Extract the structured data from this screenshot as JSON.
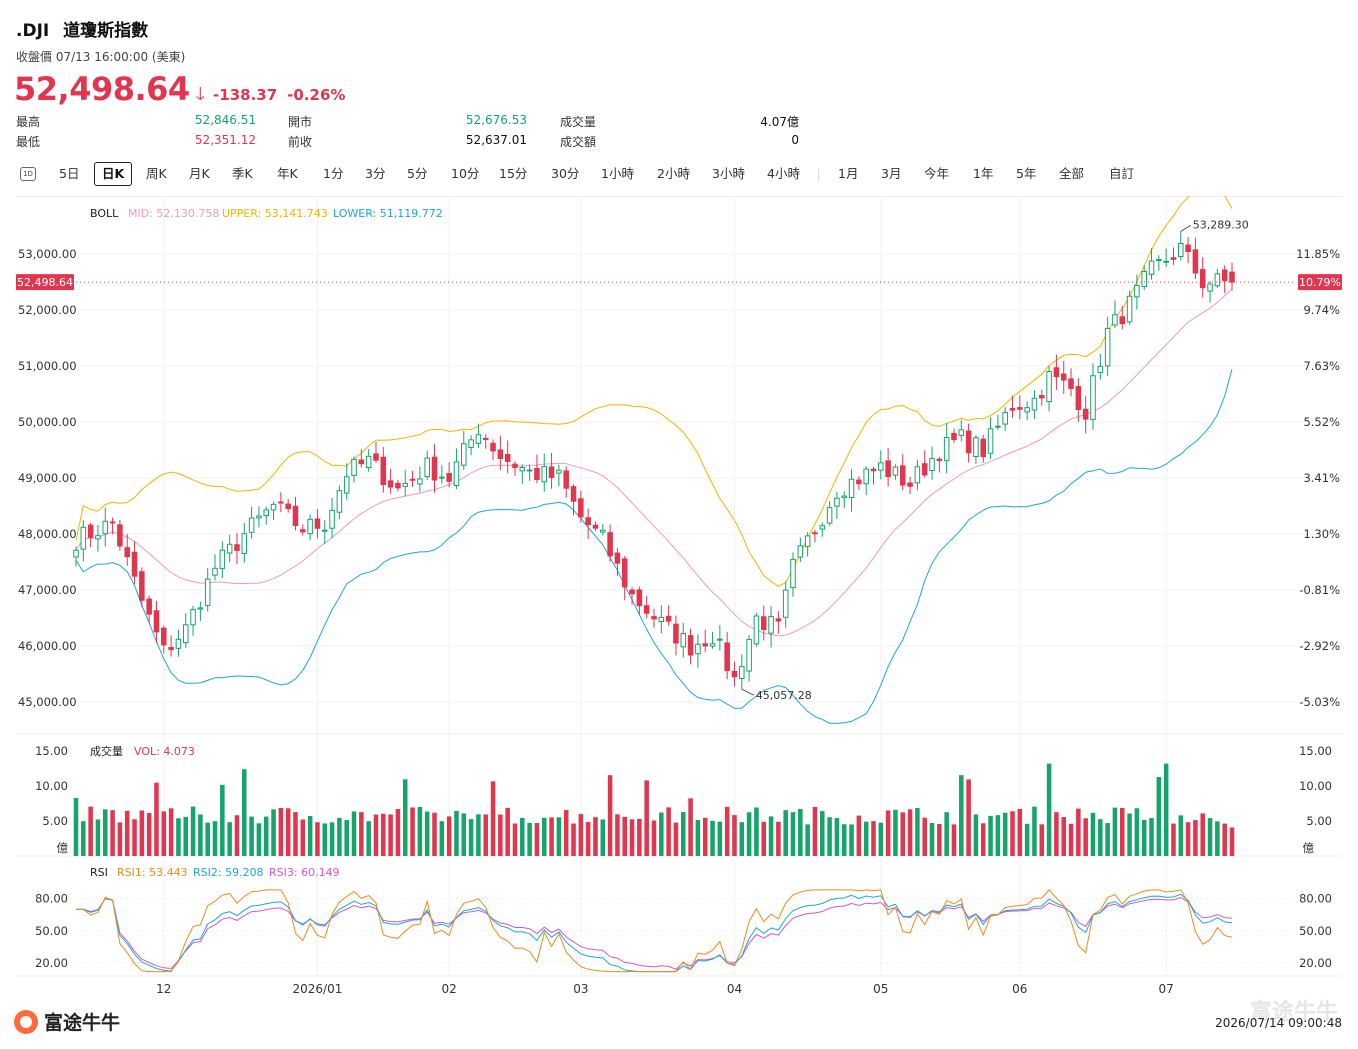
{
  "header": {
    "symbol": ".DJI",
    "name": "道瓊斯指數",
    "close_label": "收盤價 07/13 16:00:00 (美東)",
    "price": "52,498.64",
    "change": "-138.37",
    "change_pct": "-0.26%"
  },
  "stats": {
    "high_label": "最高",
    "high": "52,846.51",
    "low_label": "最低",
    "low": "52,351.12",
    "open_label": "開市",
    "open": "52,676.53",
    "prev_label": "前收",
    "prev": "52,637.01",
    "vol_label": "成交量",
    "vol": "4.07億",
    "amt_label": "成交額",
    "amt": "0"
  },
  "tabs": [
    "5日",
    "日K",
    "周K",
    "月K",
    "季K",
    "年K",
    "1分",
    "3分",
    "5分",
    "10分",
    "15分",
    "30分",
    "1小時",
    "2小時",
    "3小時",
    "4小時",
    "1月",
    "3月",
    "今年",
    "1年",
    "5年",
    "全部",
    "自訂"
  ],
  "tab_icon": "1D",
  "active_tab": "日K",
  "colors": {
    "up": "#15a56b",
    "down": "#e0364f",
    "mid": "#f29bb5",
    "upper": "#f0b400",
    "lower": "#1fa7d3",
    "rsi1": "#f08a1c",
    "rsi2": "#1fa7d3",
    "rsi3": "#d657cf"
  },
  "chart_data": {
    "type": "candlestick",
    "boll": {
      "label": "BOLL",
      "mid": "MID: 52,130.758",
      "upper": "UPPER: 53,141.743",
      "lower": "LOWER: 51,119.772"
    },
    "price_ticks": [
      "53,000.00",
      "52,000.00",
      "51,000.00",
      "50,000.00",
      "49,000.00",
      "48,000.00",
      "47,000.00",
      "46,000.00",
      "45,000.00"
    ],
    "price_tick_values": [
      53000,
      52000,
      51000,
      50000,
      49000,
      48000,
      47000,
      46000,
      45000
    ],
    "pct_ticks": [
      "11.85%",
      "9.74%",
      "7.63%",
      "5.52%",
      "3.41%",
      "1.30%",
      "-0.81%",
      "-2.92%",
      "-5.03%"
    ],
    "current_price_tag": "52,498.64",
    "current_pct_tag": "10.79%",
    "high_marker": "53,289.30",
    "low_marker": "45,057.28",
    "x_labels": [
      "12",
      "2026/01",
      "02",
      "03",
      "04",
      "05",
      "06",
      "07"
    ],
    "x_label_index": [
      12,
      33,
      51,
      69,
      90,
      110,
      129,
      149
    ],
    "path_points": [
      [
        0,
        47900
      ],
      [
        5,
        48200
      ],
      [
        9,
        46800
      ],
      [
        12,
        45900
      ],
      [
        15,
        46300
      ],
      [
        19,
        47400
      ],
      [
        23,
        48000
      ],
      [
        27,
        48500
      ],
      [
        31,
        48100
      ],
      [
        34,
        48200
      ],
      [
        37,
        49100
      ],
      [
        40,
        49300
      ],
      [
        44,
        48800
      ],
      [
        48,
        49200
      ],
      [
        51,
        49000
      ],
      [
        55,
        49900
      ],
      [
        58,
        49400
      ],
      [
        62,
        49100
      ],
      [
        66,
        49000
      ],
      [
        69,
        48300
      ],
      [
        72,
        47900
      ],
      [
        76,
        46900
      ],
      [
        80,
        46400
      ],
      [
        84,
        46000
      ],
      [
        87,
        46200
      ],
      [
        90,
        45400
      ],
      [
        93,
        46500
      ],
      [
        96,
        46300
      ],
      [
        98,
        47400
      ],
      [
        101,
        48100
      ],
      [
        104,
        48800
      ],
      [
        107,
        49000
      ],
      [
        110,
        49200
      ],
      [
        114,
        48900
      ],
      [
        118,
        49500
      ],
      [
        121,
        49700
      ],
      [
        124,
        49500
      ],
      [
        128,
        50300
      ],
      [
        131,
        50400
      ],
      [
        133,
        50800
      ],
      [
        136,
        50600
      ],
      [
        138,
        50200
      ],
      [
        141,
        51600
      ],
      [
        144,
        52100
      ],
      [
        147,
        52700
      ],
      [
        151,
        53100
      ],
      [
        154,
        52500
      ],
      [
        158,
        52500
      ]
    ],
    "volume": {
      "label": "成交量",
      "vol_label": "VOL: 4.073",
      "ticks": [
        "15.00",
        "10.00",
        "5.00"
      ],
      "tick_values": [
        15,
        10,
        5
      ],
      "unit": "億"
    },
    "rsi": {
      "label": "RSI",
      "rsi1": "RSI1: 53.443",
      "rsi2": "RSI2: 59.208",
      "rsi3": "RSI3: 60.149",
      "ticks": [
        "80.00",
        "50.00",
        "20.00"
      ],
      "tick_values": [
        80,
        50,
        20
      ]
    }
  },
  "watermark": "富途牛牛",
  "footer": {
    "brand": "富途牛牛",
    "time": "2026/07/14 09:00:48"
  }
}
